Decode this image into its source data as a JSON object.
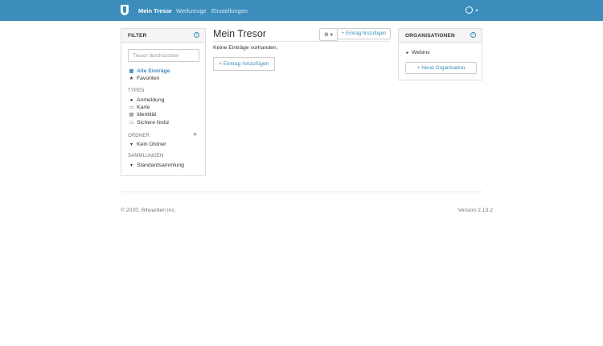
{
  "nav": {
    "items": [
      {
        "label": "Mein Tresor",
        "active": true
      },
      {
        "label": "Werkzeuge"
      },
      {
        "label": "Einstellungen"
      }
    ],
    "accent": "#3c8dbc"
  },
  "filter": {
    "title": "FILTER",
    "search_placeholder": "Tresor durchsuchen",
    "all": "Alle Einträge",
    "favorites": "Favoriten",
    "types_title": "TYPEN",
    "types": [
      "Anmeldung",
      "Karte",
      "Identität",
      "Sichere Notiz"
    ],
    "folders_title": "ORDNER",
    "folders": [
      "Kein Ordner"
    ],
    "collections_title": "SAMMLUNGEN",
    "collections": [
      "Standardsammlung"
    ]
  },
  "main": {
    "title": "Mein Tresor",
    "add_label": "Eintrag hinzufügen",
    "empty": "Keine Einträge vorhanden.",
    "add_big_label": "Eintrag hinzufügen"
  },
  "orgs": {
    "title": "ORGANISATIONEN",
    "items": [
      "Webinx"
    ],
    "new_label": "Neue Organisation"
  },
  "footer": {
    "copyright": "© 2020, Bitwarden Inc.",
    "version": "Version 2.13.2"
  }
}
